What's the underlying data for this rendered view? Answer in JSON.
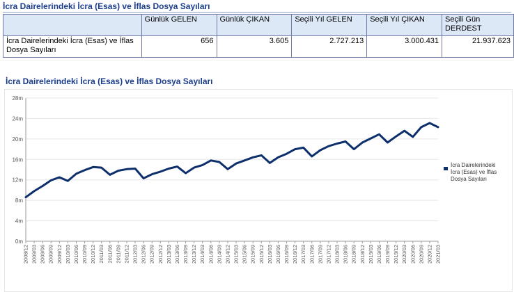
{
  "page": {
    "title": "İcra Dairelerindeki İcra (Esas) ve İflas Dosya Sayıları"
  },
  "summary_table": {
    "headers": [
      "",
      "Günlük GELEN",
      "Günlük ÇIKAN",
      "Seçili Yıl GELEN",
      "Seçili Yıl ÇIKAN",
      "Seçili Gün DERDEST"
    ],
    "row": {
      "label": "İcra Dairelerindeki İcra (Esas) ve İflas Dosya Sayıları",
      "values": [
        "656",
        "3.605",
        "2.727.213",
        "3.000.431",
        "21.937.623"
      ]
    }
  },
  "colors": {
    "title": "#1a3c8e",
    "line": "#0d2f6b",
    "header_bg": "#dde8f6",
    "grid": "#e6e6e6"
  },
  "chart_data": {
    "type": "line",
    "title": "İcra Dairelerindeki İcra (Esas) ve İflas Dosya Sayıları",
    "xlabel": "",
    "ylabel": "",
    "ylim": [
      0,
      28
    ],
    "yticks": [
      "0m",
      "4m",
      "8m",
      "12m",
      "16m",
      "20m",
      "24m",
      "28m"
    ],
    "grid": true,
    "legend_position": "right",
    "x": [
      "2008/12",
      "2009/03",
      "2009/06",
      "2009/09",
      "2009/12",
      "2010/03",
      "2010/06",
      "2010/09",
      "2010/12",
      "2011/03",
      "2011/06",
      "2011/09",
      "2011/12",
      "2012/03",
      "2012/06",
      "2012/09",
      "2012/12",
      "2013/03",
      "2013/06",
      "2013/09",
      "2013/12",
      "2014/03",
      "2014/06",
      "2014/09",
      "2014/12",
      "2015/03",
      "2015/06",
      "2015/09",
      "2015/12",
      "2016/03",
      "2016/06",
      "2016/09",
      "2016/12",
      "2017/03",
      "2017/06",
      "2017/09",
      "2017/12",
      "2018/03",
      "2018/06",
      "2018/09",
      "2018/12",
      "2019/03",
      "2019/06",
      "2019/09",
      "2019/12",
      "2020/03",
      "2020/06",
      "2020/09",
      "2020/12",
      "2021/03"
    ],
    "series": [
      {
        "name": "İcra Dairelerindeki İcra (Esas) ve İflas Dosya Sayıları",
        "values": [
          8.6,
          9.8,
          10.8,
          11.9,
          12.5,
          11.8,
          13.2,
          13.9,
          14.5,
          14.4,
          13.0,
          13.8,
          14.1,
          14.2,
          12.3,
          13.1,
          13.6,
          14.2,
          14.6,
          13.3,
          14.4,
          14.9,
          15.8,
          15.5,
          14.1,
          15.2,
          15.8,
          16.4,
          16.8,
          15.3,
          16.4,
          17.1,
          18.0,
          18.3,
          16.6,
          17.8,
          18.6,
          19.1,
          19.5,
          18.0,
          19.3,
          20.1,
          20.9,
          19.3,
          20.5,
          21.6,
          20.4,
          22.3,
          23.1,
          22.3
        ]
      }
    ]
  },
  "legend": {
    "lines": [
      "İcra Dairelerindeki",
      "İcra (Esas) ve İflas",
      "Dosya Sayıları"
    ]
  }
}
